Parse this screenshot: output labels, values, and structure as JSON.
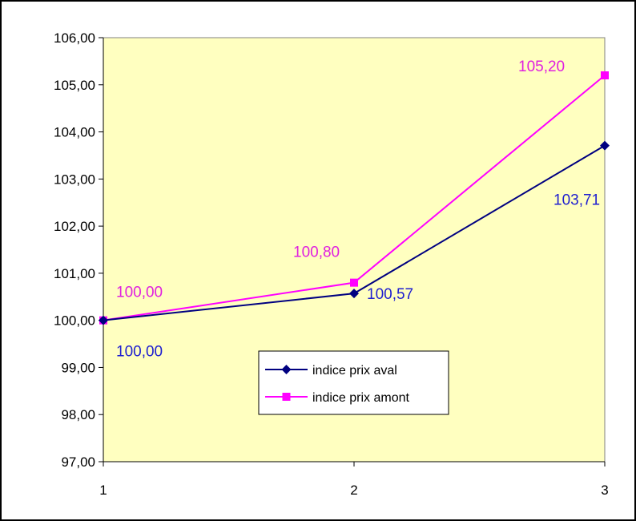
{
  "chart_data": {
    "type": "line",
    "x": [
      1,
      2,
      3
    ],
    "x_tick_labels": [
      "1",
      "2",
      "3"
    ],
    "y_tick_labels": [
      "106,00",
      "105,00",
      "104,00",
      "103,00",
      "102,00",
      "101,00",
      "100,00",
      "99,00",
      "98,00",
      "97,00"
    ],
    "ylim": [
      97,
      106
    ],
    "y_ticks": [
      106,
      105,
      104,
      103,
      102,
      101,
      100,
      99,
      98,
      97
    ],
    "grid": false,
    "legend_position": "center-bottom",
    "plot_background": "#FFFFC0",
    "series": [
      {
        "name": "indice prix aval",
        "values": [
          100.0,
          100.57,
          103.71
        ],
        "data_labels": [
          "100,00",
          "100,57",
          "103,71"
        ],
        "line_color": "#000080",
        "label_color": "#1F1FD0",
        "marker": "diamond"
      },
      {
        "name": "indice prix amont",
        "values": [
          100.0,
          100.8,
          105.2
        ],
        "data_labels": [
          "100,00",
          "100,80",
          "105,20"
        ],
        "line_color": "#FF00FF",
        "label_color": "#E020E0",
        "marker": "square"
      }
    ]
  }
}
